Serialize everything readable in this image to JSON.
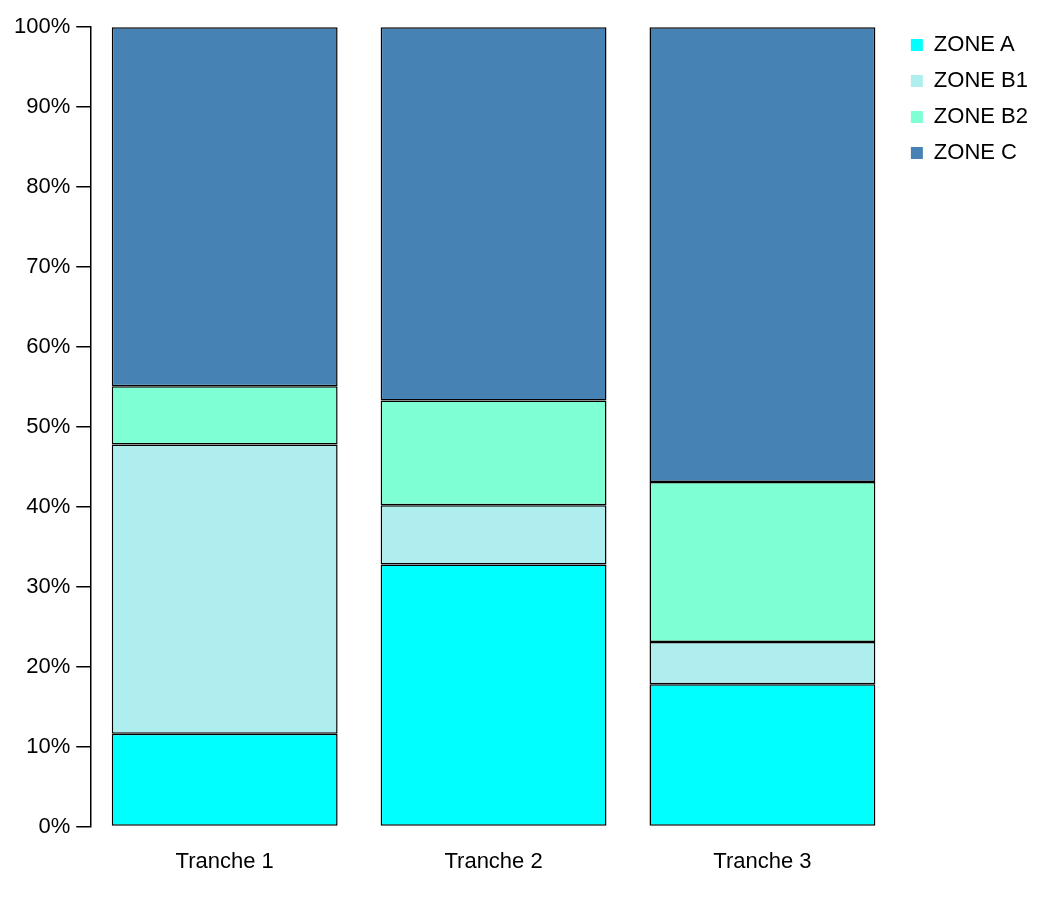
{
  "chart_data": {
    "type": "bar",
    "stacked": true,
    "categories": [
      "Tranche 1",
      "Tranche 2",
      "Tranche 3"
    ],
    "series": [
      {
        "name": "ZONE A",
        "color": "#00ffff",
        "values": [
          11.6,
          32.8,
          17.8
        ]
      },
      {
        "name": "ZONE B1",
        "color": "#afeeee",
        "values": [
          36.2,
          7.4,
          5.3
        ]
      },
      {
        "name": "ZONE B2",
        "color": "#7fffd4",
        "values": [
          7.3,
          13.1,
          20.0
        ]
      },
      {
        "name": "ZONE C",
        "color": "#4682b4",
        "values": [
          44.9,
          46.7,
          56.9
        ]
      }
    ],
    "ylim": [
      0,
      100
    ],
    "yticks": [
      {
        "value": 0,
        "label": "0%"
      },
      {
        "value": 10,
        "label": "10%"
      },
      {
        "value": 20,
        "label": "20%"
      },
      {
        "value": 30,
        "label": "30%"
      },
      {
        "value": 40,
        "label": "40%"
      },
      {
        "value": 50,
        "label": "50%"
      },
      {
        "value": 60,
        "label": "60%"
      },
      {
        "value": 70,
        "label": "70%"
      },
      {
        "value": 80,
        "label": "80%"
      },
      {
        "value": 90,
        "label": "90%"
      },
      {
        "value": 100,
        "label": "100%"
      }
    ],
    "grid": false,
    "legend": "top right"
  }
}
